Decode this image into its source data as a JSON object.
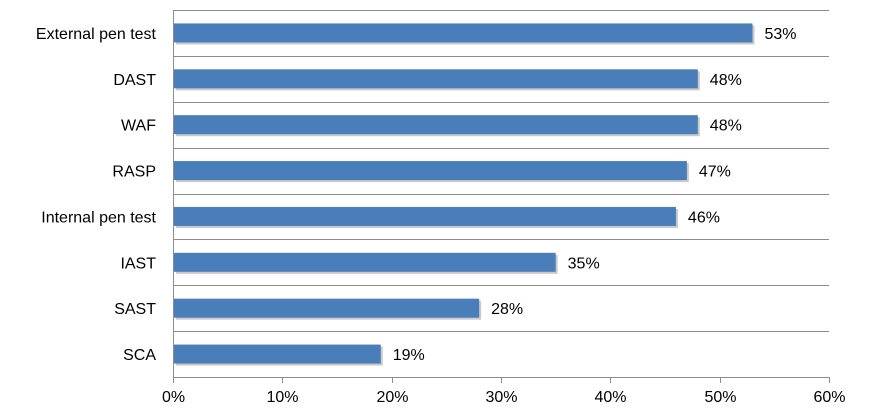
{
  "chart_data": {
    "type": "bar",
    "orientation": "horizontal",
    "categories": [
      "External pen test",
      "DAST",
      "WAF",
      "RASP",
      "Internal pen test",
      "IAST",
      "SAST",
      "SCA"
    ],
    "values": [
      53,
      48,
      48,
      47,
      46,
      35,
      28,
      19
    ],
    "value_labels": [
      "53%",
      "48%",
      "48%",
      "47%",
      "46%",
      "35%",
      "28%",
      "19%"
    ],
    "xlim": [
      0,
      60
    ],
    "xticks": [
      0,
      10,
      20,
      30,
      40,
      50,
      60
    ],
    "xtick_labels": [
      "0%",
      "10%",
      "20%",
      "30%",
      "40%",
      "50%",
      "60%"
    ],
    "title": "",
    "xlabel": "",
    "ylabel": "",
    "grid": "horizontal separators between categories",
    "legend": "none",
    "colors": {
      "bar": "#4a7ebb",
      "bar_shadow": "#c9c9c9",
      "gridline": "#8c8c8c",
      "axis": "#8c8c8c"
    }
  }
}
